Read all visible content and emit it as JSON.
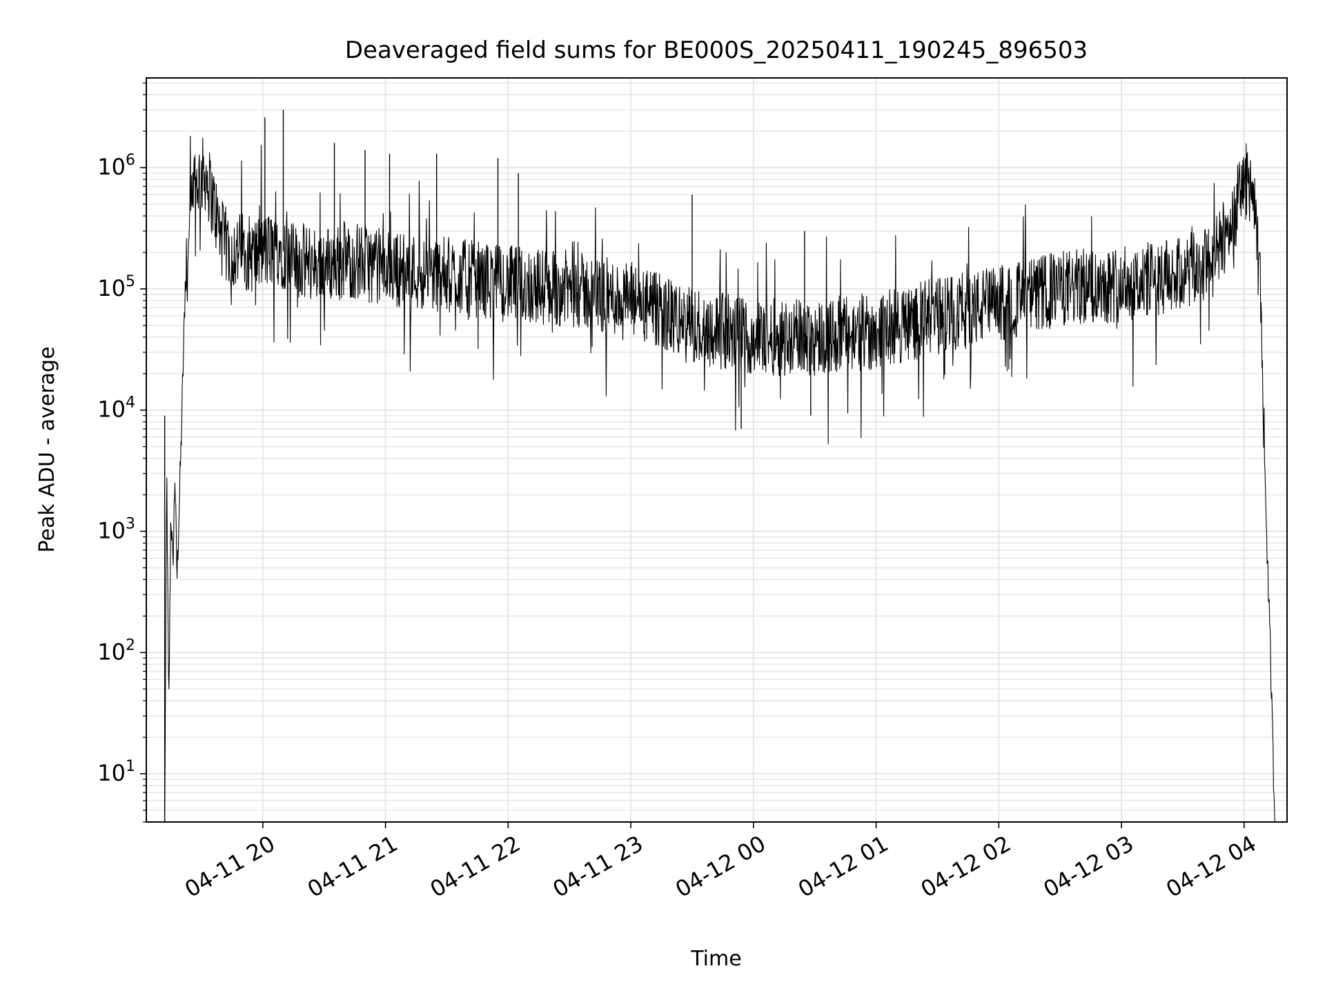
{
  "chart_data": {
    "type": "line",
    "title": "Deaveraged field sums for BE000S_20250411_190245_896503",
    "xlabel": "Time",
    "ylabel": "Peak ADU - average",
    "x_scale": "time",
    "y_scale": "log",
    "xlim": [
      "2025-04-11 19:03",
      "2025-04-12 04:21"
    ],
    "ylim": [
      4,
      5500000
    ],
    "x_ticks": [
      "2025-04-11 20:00",
      "2025-04-11 21:00",
      "2025-04-11 22:00",
      "2025-04-11 23:00",
      "2025-04-12 00:00",
      "2025-04-12 01:00",
      "2025-04-12 02:00",
      "2025-04-12 03:00",
      "2025-04-12 04:00"
    ],
    "x_tick_labels": [
      "04-11 20",
      "04-11 21",
      "04-11 22",
      "04-11 23",
      "04-12 00",
      "04-12 01",
      "04-12 02",
      "04-12 03",
      "04-12 04"
    ],
    "y_ticks": [
      10,
      100,
      1000,
      10000,
      100000,
      1000000
    ],
    "y_tick_labels": [
      {
        "base": "10",
        "exp": "1"
      },
      {
        "base": "10",
        "exp": "2"
      },
      {
        "base": "10",
        "exp": "3"
      },
      {
        "base": "10",
        "exp": "4"
      },
      {
        "base": "10",
        "exp": "5"
      },
      {
        "base": "10",
        "exp": "6"
      }
    ],
    "grid": true,
    "line_color": "#000000",
    "grid_color": "#e6e6e6",
    "series": [
      {
        "x": [
          "2025-04-11 19:12",
          "2025-04-11 19:13",
          "2025-04-11 19:14",
          "2025-04-11 19:15",
          "2025-04-11 19:16",
          "2025-04-11 19:17",
          "2025-04-11 19:18",
          "2025-04-11 19:20",
          "2025-04-11 19:22",
          "2025-04-11 19:25",
          "2025-04-11 19:28",
          "2025-04-11 19:32",
          "2025-04-11 19:36",
          "2025-04-11 19:40",
          "2025-04-11 19:45",
          "2025-04-11 19:50",
          "2025-04-11 19:55",
          "2025-04-11 20:00",
          "2025-04-11 20:08",
          "2025-04-11 20:15",
          "2025-04-11 20:30",
          "2025-04-11 20:45",
          "2025-04-11 21:00",
          "2025-04-11 21:30",
          "2025-04-11 22:00",
          "2025-04-11 22:30",
          "2025-04-11 23:00",
          "2025-04-11 23:30",
          "2025-04-12 00:00",
          "2025-04-12 00:30",
          "2025-04-12 01:00",
          "2025-04-12 01:30",
          "2025-04-12 02:00",
          "2025-04-12 02:30",
          "2025-04-12 03:00",
          "2025-04-12 03:30",
          "2025-04-12 03:45",
          "2025-04-12 03:55",
          "2025-04-12 04:00",
          "2025-04-12 04:04",
          "2025-04-12 04:08",
          "2025-04-12 04:11",
          "2025-04-12 04:13",
          "2025-04-12 04:15"
        ],
        "y": [
          4,
          3000,
          30,
          1500,
          500,
          3000,
          400,
          5000,
          100000,
          400000,
          800000,
          900000,
          500000,
          250000,
          200000,
          210000,
          190000,
          200000,
          220000,
          170000,
          160000,
          170000,
          150000,
          130000,
          110000,
          100000,
          80000,
          50000,
          40000,
          40000,
          45000,
          60000,
          75000,
          100000,
          110000,
          130000,
          170000,
          400000,
          800000,
          700000,
          100000,
          1000,
          80,
          4
        ]
      }
    ],
    "spikes": [
      {
        "x": "2025-04-11 19:12",
        "y": 9000
      },
      {
        "x": "2025-04-11 20:01",
        "y": 2600000
      },
      {
        "x": "2025-04-11 20:10",
        "y": 3000000
      },
      {
        "x": "2025-04-11 20:35",
        "y": 1600000
      },
      {
        "x": "2025-04-11 20:50",
        "y": 1400000
      },
      {
        "x": "2025-04-11 21:02",
        "y": 1300000
      },
      {
        "x": "2025-04-11 21:25",
        "y": 1300000
      },
      {
        "x": "2025-04-11 21:55",
        "y": 1200000
      },
      {
        "x": "2025-04-11 22:05",
        "y": 900000
      },
      {
        "x": "2025-04-11 23:30",
        "y": 600000
      },
      {
        "x": "2025-04-12 00:25",
        "y": 300000
      },
      {
        "x": "2025-04-11 23:54",
        "y": 7000
      },
      {
        "x": "2025-04-12 00:28",
        "y": 9000
      }
    ]
  }
}
